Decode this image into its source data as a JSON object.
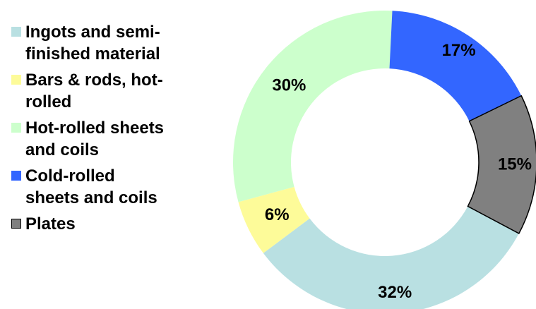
{
  "chart_data": {
    "type": "pie",
    "variant": "donut",
    "categories": [
      "Ingots and semi-finished material",
      "Bars & rods, hot-rolled",
      "Hot-rolled sheets and coils",
      "Cold-rolled sheets and coils",
      "Plates"
    ],
    "values": [
      32,
      6,
      30,
      17,
      15
    ],
    "value_labels": [
      "32%",
      "6%",
      "30%",
      "17%",
      "15%"
    ],
    "colors": [
      "#b9e0e2",
      "#fdfb99",
      "#ccffcc",
      "#3366ff",
      "#808080"
    ],
    "legend": {
      "placement": "left",
      "items": [
        {
          "label": "Ingots and semi-\nfinished material",
          "color": "#b9e0e2"
        },
        {
          "label": "Bars & rods, hot-\nrolled",
          "color": "#fdfb99"
        },
        {
          "label": "Hot-rolled sheets\nand coils",
          "color": "#ccffcc"
        },
        {
          "label": "Cold-rolled\nsheets and coils",
          "color": "#3366ff"
        },
        {
          "label": "Plates",
          "color": "#808080"
        }
      ]
    }
  }
}
